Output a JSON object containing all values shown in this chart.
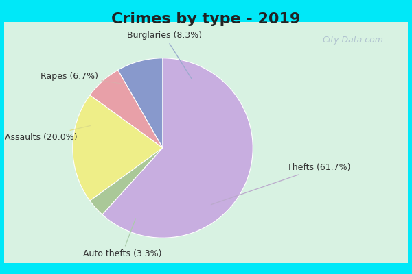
{
  "title": "Crimes by type - 2019",
  "slices": [
    {
      "label": "Thefts (61.7%)",
      "value": 61.7,
      "color": "#c8aee0"
    },
    {
      "label": "Burglaries (8.3%)",
      "value": 8.3,
      "color": "#8899cc"
    },
    {
      "label": "Rapes (6.7%)",
      "value": 6.7,
      "color": "#e8a0a8"
    },
    {
      "label": "Assaults (20.0%)",
      "value": 20.0,
      "color": "#eeee88"
    },
    {
      "label": "Auto thefts (3.3%)",
      "value": 3.3,
      "color": "#aac898"
    }
  ],
  "bg_cyan": "#00e8f8",
  "bg_inner": "#c8f0d8",
  "title_fontsize": 16,
  "label_fontsize": 9,
  "watermark": "City-Data.com"
}
